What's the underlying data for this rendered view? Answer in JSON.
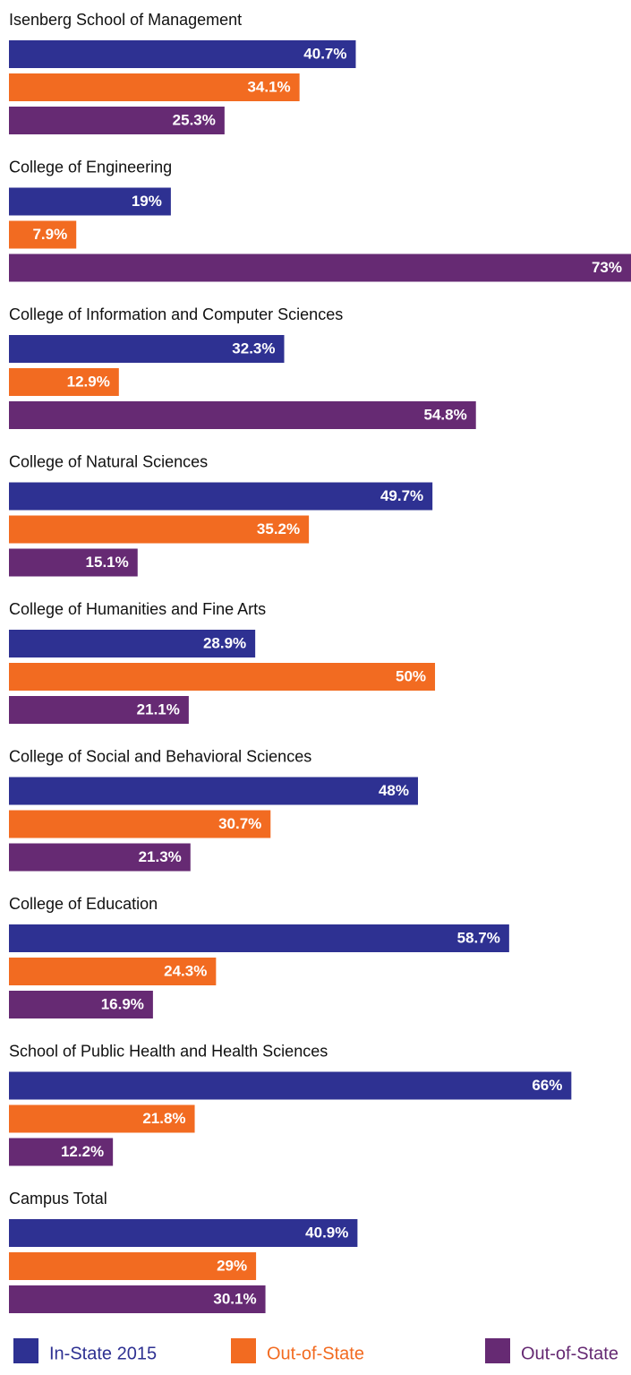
{
  "chart_data": {
    "type": "hbar",
    "categories": [
      "Isenberg School of Management",
      "College of Engineering",
      "College of Information and Computer Sciences",
      "College of Natural Sciences",
      "College of Humanities and Fine Arts",
      "College of Social and Behavioral Sciences",
      "College of Education",
      "School of Public Health and Health Sciences",
      "Campus Total"
    ],
    "series": [
      {
        "name": "In-State 2015",
        "color": "#2e3192",
        "values": [
          40.7,
          19,
          32.3,
          49.7,
          28.9,
          48,
          58.7,
          66,
          40.9
        ],
        "value_labels": [
          "40.7%",
          "19%",
          "32.3%",
          "49.7%",
          "28.9%",
          "48%",
          "58.7%",
          "66%",
          "40.9%"
        ]
      },
      {
        "name": "Out-of-State",
        "color": "#f26b21",
        "values": [
          34.1,
          7.9,
          12.9,
          35.2,
          50,
          30.7,
          24.3,
          21.8,
          29
        ],
        "value_labels": [
          "34.1%",
          "7.9%",
          "12.9%",
          "35.2%",
          "50%",
          "30.7%",
          "24.3%",
          "21.8%",
          "29%"
        ]
      },
      {
        "name": "Out-of-State",
        "color": "#662a73",
        "values": [
          25.3,
          73,
          54.8,
          15.1,
          21.1,
          21.3,
          16.9,
          12.2,
          30.1
        ],
        "value_labels": [
          "25.3%",
          "73%",
          "54.8%",
          "15.1%",
          "21.1%",
          "21.3%",
          "16.9%",
          "12.2%",
          "30.1%"
        ]
      }
    ]
  }
}
